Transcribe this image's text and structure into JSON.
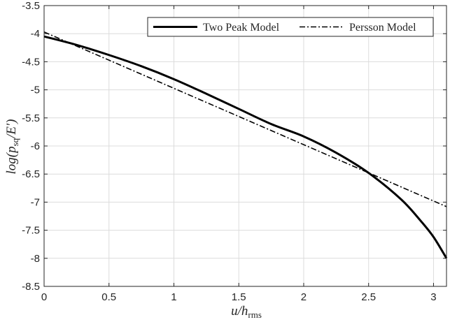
{
  "chart_data": {
    "type": "line",
    "xlabel": "u/h_rms",
    "ylabel": "log(p_sq/E')",
    "xlim": [
      0,
      3.1
    ],
    "ylim": [
      -8.5,
      -3.5
    ],
    "xticks": [
      0,
      0.5,
      1,
      1.5,
      2,
      2.5,
      3
    ],
    "xtick_labels": [
      "0",
      "0.5",
      "1",
      "1.5",
      "2",
      "2.5",
      "3"
    ],
    "yticks": [
      -3.5,
      -4,
      -4.5,
      -5,
      -5.5,
      -6,
      -6.5,
      -7,
      -7.5,
      -8,
      -8.5
    ],
    "ytick_labels": [
      "-3.5",
      "-4",
      "-4.5",
      "-5",
      "-5.5",
      "-6",
      "-6.5",
      "-7",
      "-7.5",
      "-8",
      "-8.5"
    ],
    "grid": true,
    "legend_position": "top-right",
    "series": [
      {
        "name": "Two Peak Model",
        "style": "solid",
        "color": "#000000",
        "x": [
          0,
          0.25,
          0.5,
          0.75,
          1.0,
          1.25,
          1.5,
          1.75,
          2.0,
          2.25,
          2.5,
          2.75,
          2.9,
          3.0,
          3.1
        ],
        "y": [
          -4.05,
          -4.2,
          -4.38,
          -4.58,
          -4.81,
          -5.07,
          -5.34,
          -5.61,
          -5.83,
          -6.12,
          -6.48,
          -6.95,
          -7.33,
          -7.62,
          -8.0
        ]
      },
      {
        "name": "Persson Model",
        "style": "dashdot",
        "color": "#000000",
        "x": [
          0,
          3.1
        ],
        "y": [
          -3.97,
          -7.08
        ]
      }
    ]
  },
  "axes": {
    "xlabel_base": "u/h",
    "xlabel_sub": "rms",
    "ylabel_base": "log(p",
    "ylabel_sub": "sq",
    "ylabel_tail": "/E′)"
  },
  "legend": {
    "items": [
      "Two Peak Model",
      "Persson Model"
    ]
  }
}
